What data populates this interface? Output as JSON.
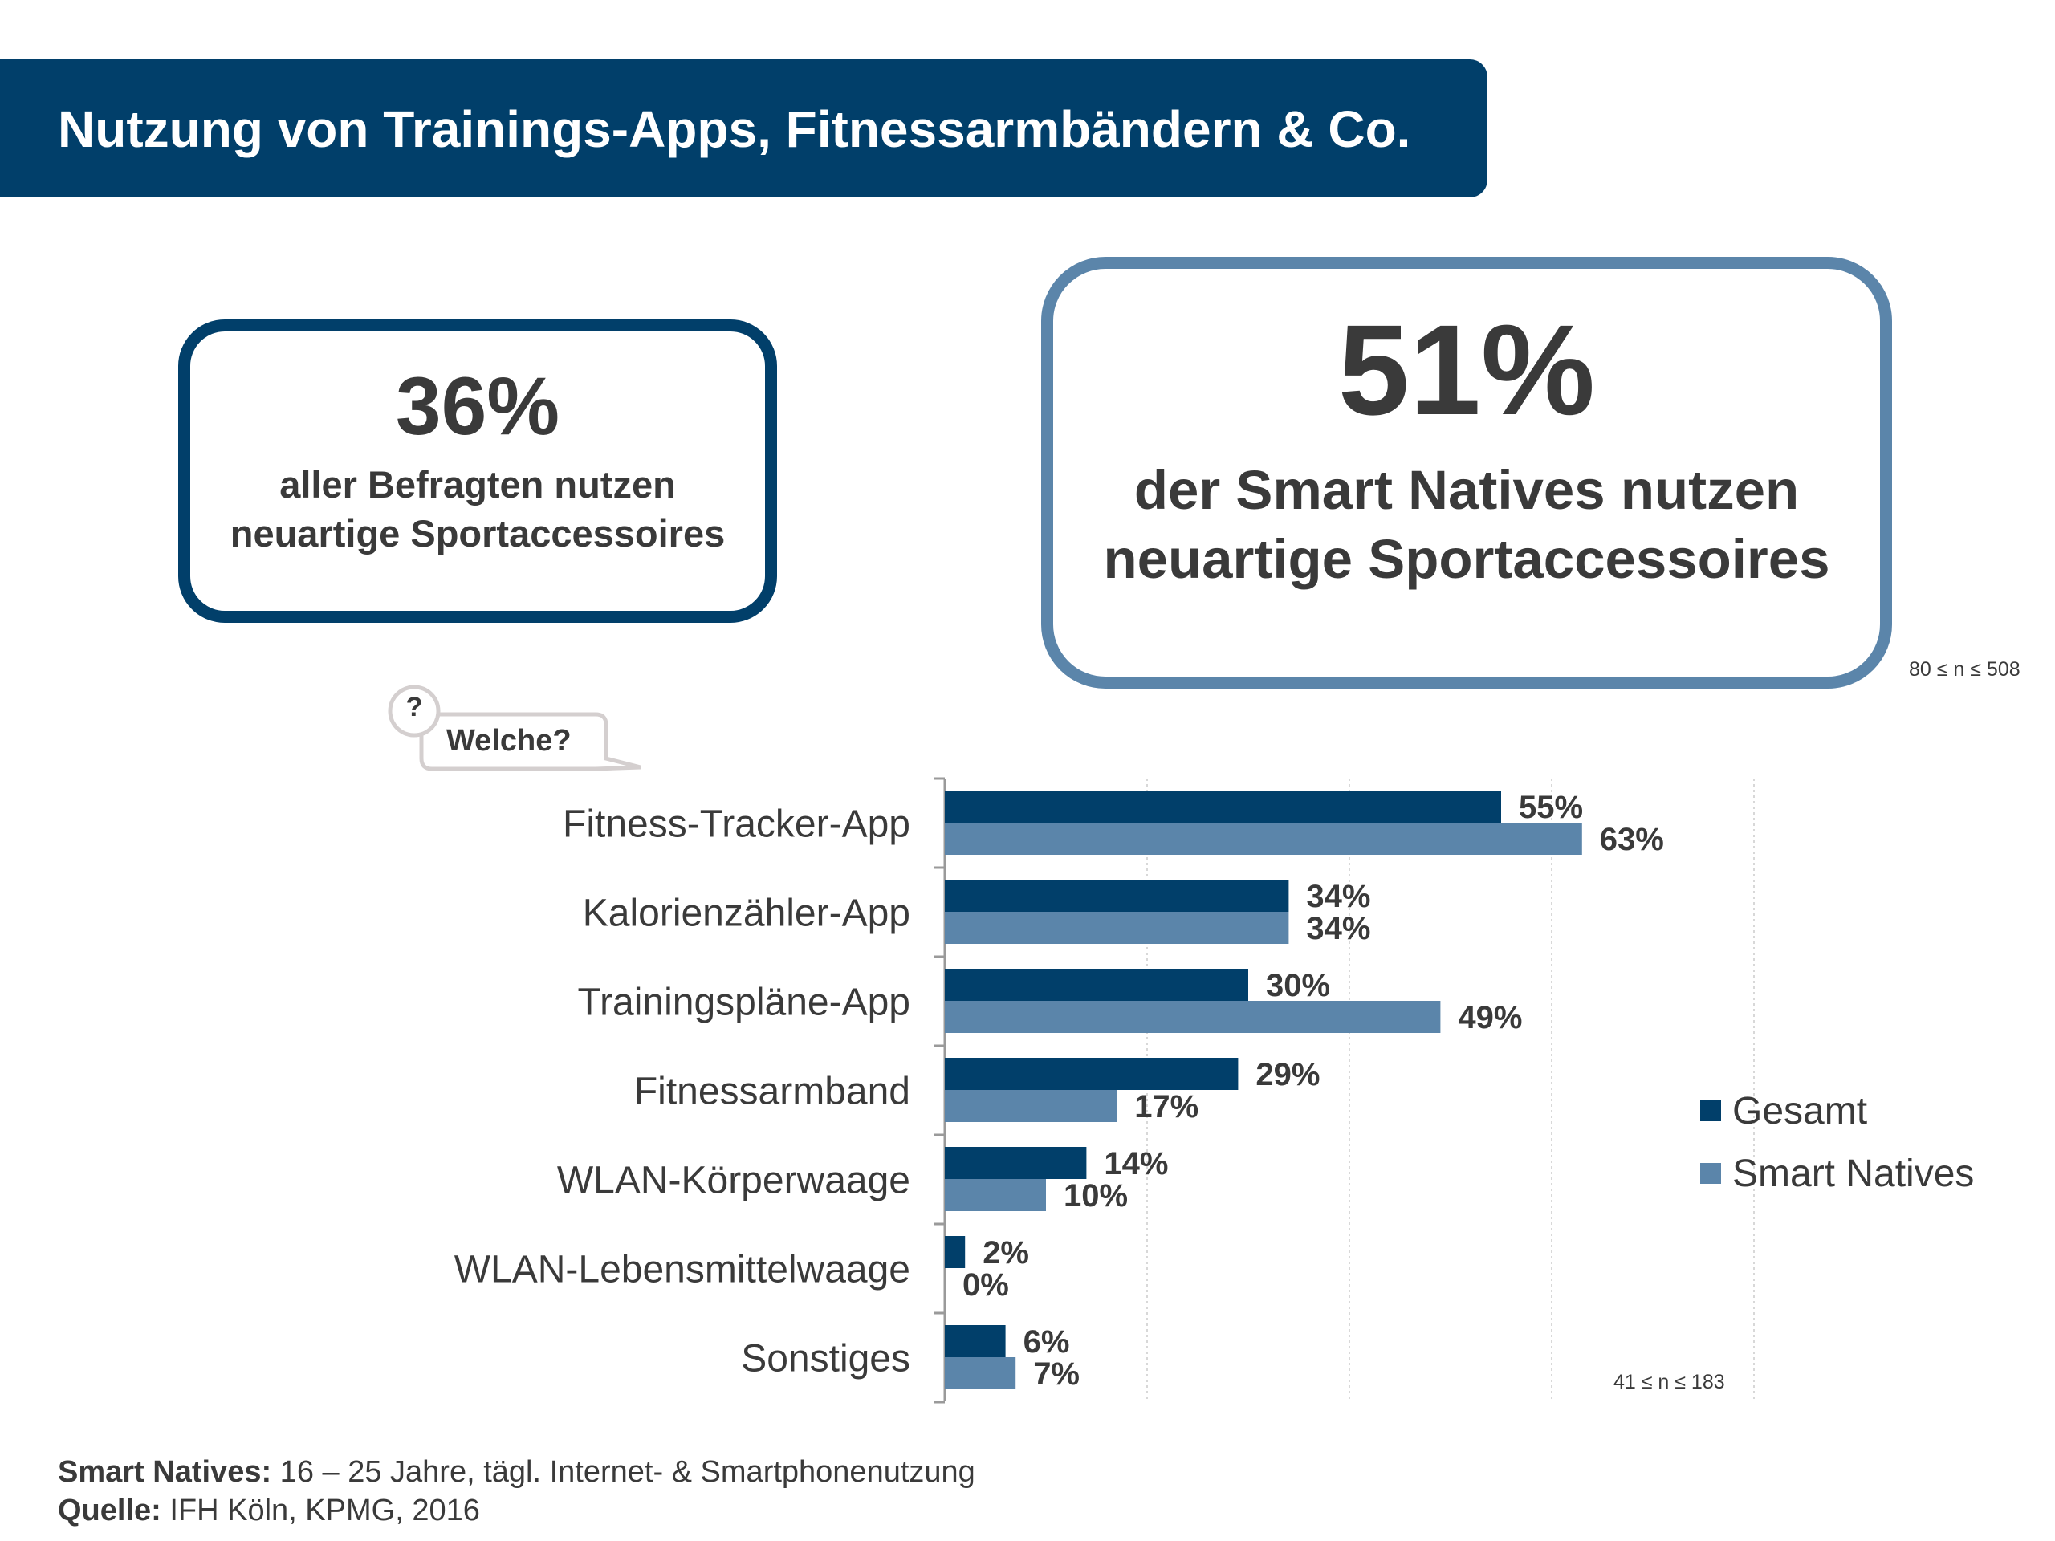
{
  "header": {
    "title": "Nutzung von Trainings-Apps, Fitnessarmbändern & Co."
  },
  "stat_left": {
    "value": "36%",
    "text": "aller Befragten nutzen neuartige Sportaccessoires"
  },
  "stat_right": {
    "value": "51%",
    "text": "der Smart Natives nutzen neuartige Sportaccessoires"
  },
  "sample_top": "80 ≤ n ≤ 508",
  "question": {
    "mark": "?",
    "label": "Welche?"
  },
  "chart_data": {
    "type": "bar",
    "orientation": "horizontal",
    "categories": [
      "Fitness-Tracker-App",
      "Kalorienzähler-App",
      "Trainingspläne-App",
      "Fitnessarmband",
      "WLAN-Körperwaage",
      "WLAN-Lebensmittelwaage",
      "Sonstiges"
    ],
    "series": [
      {
        "name": "Gesamt",
        "values": [
          55,
          34,
          30,
          29,
          14,
          2,
          6
        ],
        "labels": [
          "55%",
          "34%",
          "30%",
          "29%",
          "14%",
          "2%",
          "6%"
        ],
        "color": "#013f6a"
      },
      {
        "name": "Smart Natives",
        "values": [
          63,
          34,
          49,
          17,
          10,
          0,
          7
        ],
        "labels": [
          "63%",
          "34%",
          "49%",
          "17%",
          "10%",
          "0%",
          "7%"
        ],
        "color": "#5b85aa"
      }
    ],
    "xlim": [
      0,
      80
    ],
    "grid": "vertical-dotted",
    "legend_position": "right",
    "sample_note": "41 ≤ n ≤ 183"
  },
  "footer": {
    "line1_label": "Smart Natives:",
    "line1_text": " 16 – 25 Jahre, tägl. Internet- & Smartphonenutzung",
    "line2_label": "Quelle:",
    "line2_text": " IFH Köln, KPMG, 2016"
  }
}
